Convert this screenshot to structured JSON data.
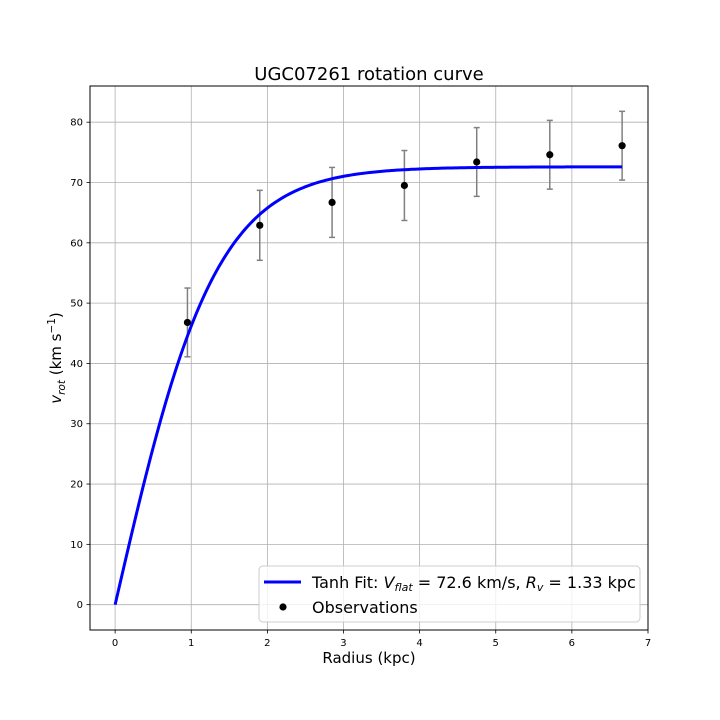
{
  "chart_data": {
    "type": "scatter",
    "title": "UGC07261 rotation curve",
    "xlabel": "Radius (kpc)",
    "ylabel": "v_rot (km s^-1)",
    "xlim": [
      -0.33,
      7.0
    ],
    "ylim": [
      -4.2,
      86.0
    ],
    "xticks": [
      0,
      1,
      2,
      3,
      4,
      5,
      6,
      7
    ],
    "yticks": [
      0,
      10,
      20,
      30,
      40,
      50,
      60,
      70,
      80
    ],
    "grid": true,
    "legend_position": "lower-right",
    "series": [
      {
        "name": "Tanh Fit: V_flat = 72.6 km/s, R_v = 1.33 kpc",
        "kind": "line",
        "color": "#0000ff",
        "model": "tanh",
        "params": {
          "V_flat": 72.6,
          "R_v": 1.33
        },
        "x_range": [
          0,
          6.66
        ]
      },
      {
        "name": "Observations",
        "kind": "errorbar",
        "color": "#000000",
        "errorbar_color": "#808080",
        "x": [
          0.95,
          1.9,
          2.85,
          3.8,
          4.75,
          5.71,
          6.66
        ],
        "y": [
          46.8,
          62.9,
          66.7,
          69.5,
          73.4,
          74.6,
          76.1
        ],
        "yerr": [
          5.7,
          5.8,
          5.8,
          5.8,
          5.7,
          5.7,
          5.7
        ]
      }
    ]
  },
  "legend": {
    "fit_prefix": "Tanh Fit: ",
    "vflat_symbol": "V",
    "vflat_sub": "flat",
    "vflat_value": " = 72.6 km/s, ",
    "rv_symbol": "R",
    "rv_sub": "v",
    "rv_value": " = 1.33 kpc",
    "observations": "Observations"
  },
  "ylabel_parts": {
    "symbol": "v",
    "sub": "rot",
    "unit_open": " (km s",
    "exp": "−1",
    "unit_close": ")"
  }
}
